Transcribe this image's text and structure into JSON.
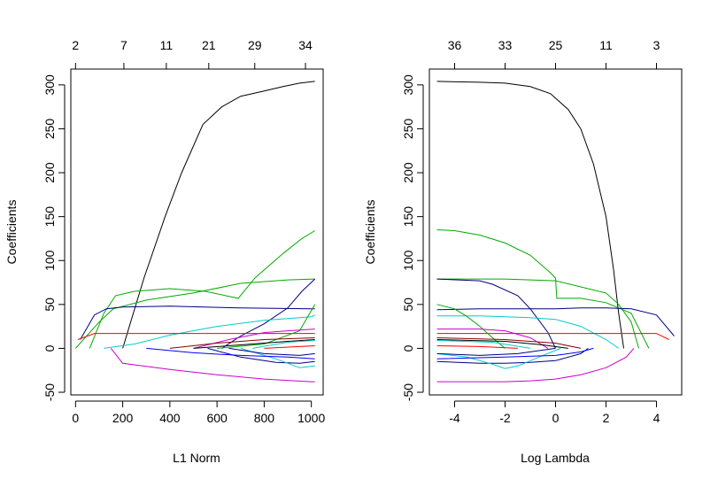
{
  "chart_data": [
    {
      "type": "line",
      "xlabel": "L1 Norm",
      "ylabel": "Coefficients",
      "xlim": [
        -20,
        1050
      ],
      "ylim": [
        -53,
        318
      ],
      "x_ticks": [
        0,
        200,
        400,
        600,
        800,
        1000
      ],
      "x_tick_labels": [
        "0",
        "200",
        "400",
        "600",
        "800",
        "1000"
      ],
      "y_ticks": [
        -50,
        0,
        50,
        100,
        150,
        200,
        250,
        300
      ],
      "y_tick_labels": [
        "-50",
        "0",
        "50",
        "100",
        "150",
        "200",
        "250",
        "300"
      ],
      "top_ticks": [
        0,
        205,
        385,
        565,
        760,
        975
      ],
      "top_tick_labels": [
        "2",
        "7",
        "11",
        "21",
        "29",
        "34"
      ],
      "series": [
        {
          "color": "#000000",
          "x": [
            200,
            290,
            380,
            450,
            540,
            620,
            700,
            800,
            880,
            950,
            1015
          ],
          "y": [
            0,
            80,
            150,
            200,
            255,
            275,
            287,
            293,
            298,
            302,
            304
          ]
        },
        {
          "color": "#00aa00",
          "x": [
            60,
            120,
            170,
            250,
            400,
            550,
            690,
            760,
            880,
            960,
            1015
          ],
          "y": [
            0,
            40,
            60,
            65,
            68,
            65,
            57,
            80,
            108,
            125,
            134
          ]
        },
        {
          "color": "#00aa00",
          "x": [
            0,
            100,
            160,
            300,
            500,
            700,
            900,
            1015
          ],
          "y": [
            0,
            30,
            45,
            55,
            63,
            74,
            78,
            79
          ]
        },
        {
          "color": "#000080",
          "x": [
            20,
            80,
            130,
            200,
            400,
            700,
            1000,
            1015
          ],
          "y": [
            10,
            38,
            45,
            47,
            48,
            46,
            45,
            45
          ]
        },
        {
          "color": "#000080",
          "x": [
            620,
            700,
            800,
            900,
            960,
            1015
          ],
          "y": [
            0,
            14,
            28,
            46,
            65,
            79
          ]
        },
        {
          "color": "#00cccc",
          "x": [
            120,
            250,
            400,
            600,
            800,
            1000,
            1015
          ],
          "y": [
            0,
            5,
            15,
            25,
            32,
            36,
            38
          ]
        },
        {
          "color": "#ff0000",
          "x": [
            10,
            80,
            1015
          ],
          "y": [
            10,
            17,
            17
          ]
        },
        {
          "color": "#cc00cc",
          "x": [
            150,
            200,
            400,
            600,
            800,
            1000,
            1015
          ],
          "y": [
            0,
            -17,
            -24,
            -30,
            -35,
            -38,
            -38
          ]
        },
        {
          "color": "#00aa00",
          "x": [
            600,
            800,
            950,
            1015
          ],
          "y": [
            0,
            5,
            20,
            50
          ]
        },
        {
          "color": "#cc00cc",
          "x": [
            500,
            650,
            800,
            900,
            1015
          ],
          "y": [
            0,
            10,
            18,
            20,
            22
          ]
        },
        {
          "color": "#000080",
          "x": [
            560,
            700,
            850,
            950,
            1015
          ],
          "y": [
            0,
            -10,
            -16,
            -17,
            -15
          ]
        },
        {
          "color": "#00cccc",
          "x": [
            700,
            850,
            950,
            1015
          ],
          "y": [
            0,
            -12,
            -22,
            -20
          ]
        },
        {
          "color": "#0000ff",
          "x": [
            300,
            500,
            700,
            900,
            1015
          ],
          "y": [
            0,
            -5,
            -8,
            -10,
            -12
          ]
        },
        {
          "color": "#8b0000",
          "x": [
            400,
            600,
            800,
            1015
          ],
          "y": [
            0,
            6,
            10,
            12
          ]
        },
        {
          "color": "#000000",
          "x": [
            500,
            700,
            900,
            1015
          ],
          "y": [
            0,
            4,
            8,
            10
          ]
        },
        {
          "color": "#000080",
          "x": [
            650,
            800,
            950,
            1015
          ],
          "y": [
            0,
            -6,
            -8,
            -6
          ]
        },
        {
          "color": "#00cccc",
          "x": [
            750,
            900,
            1015
          ],
          "y": [
            0,
            7,
            9
          ]
        },
        {
          "color": "#ff0000",
          "x": [
            800,
            950,
            1015
          ],
          "y": [
            0,
            2,
            3
          ]
        }
      ]
    },
    {
      "type": "line",
      "xlabel": "Log Lambda",
      "ylabel": "Coefficients",
      "xlim": [
        -5.0,
        5.0
      ],
      "ylim": [
        -53,
        318
      ],
      "x_ticks": [
        -4,
        -2,
        0,
        2,
        4
      ],
      "x_tick_labels": [
        "-4",
        "-2",
        "0",
        "2",
        "4"
      ],
      "y_ticks": [
        -50,
        0,
        50,
        100,
        150,
        200,
        250,
        300
      ],
      "y_tick_labels": [
        "-50",
        "0",
        "50",
        "100",
        "150",
        "200",
        "250",
        "300"
      ],
      "top_ticks": [
        -4.0,
        -2.0,
        0.0,
        2.0,
        4.0
      ],
      "top_tick_labels": [
        "36",
        "33",
        "25",
        "11",
        "3"
      ],
      "series": [
        {
          "color": "#000000",
          "x": [
            -4.7,
            -3.0,
            -2.0,
            -1.0,
            -0.2,
            0.5,
            1.0,
            1.5,
            2.0,
            2.3,
            2.5,
            2.7
          ],
          "y": [
            304,
            303,
            302,
            298,
            290,
            272,
            250,
            210,
            150,
            90,
            40,
            0
          ]
        },
        {
          "color": "#00aa00",
          "x": [
            -4.7,
            -4.0,
            -3.0,
            -2.0,
            -1.0,
            -0.2,
            0.0,
            0.05,
            1.0,
            2.0,
            3.0,
            3.7
          ],
          "y": [
            135,
            134,
            129,
            120,
            106,
            86,
            80,
            57,
            57,
            52,
            40,
            0
          ]
        },
        {
          "color": "#00aa00",
          "x": [
            -4.7,
            -2.0,
            0.0,
            1.0,
            2.0,
            2.5,
            3.0,
            3.3
          ],
          "y": [
            79,
            79,
            77,
            70,
            63,
            50,
            30,
            0
          ]
        },
        {
          "color": "#000080",
          "x": [
            -4.7,
            -3.0,
            -2.0,
            -1.0,
            0.0,
            1.0,
            2.0,
            3.0,
            4.0,
            4.7
          ],
          "y": [
            44,
            45,
            45,
            45,
            45,
            46,
            46,
            45,
            38,
            14
          ]
        },
        {
          "color": "#000080",
          "x": [
            -4.7,
            -3.0,
            -2.5,
            -1.5,
            -1.0,
            -0.3,
            0.0
          ],
          "y": [
            79,
            77,
            73,
            60,
            45,
            18,
            0
          ]
        },
        {
          "color": "#00cccc",
          "x": [
            -4.7,
            -3.0,
            -2.0,
            -1.0,
            0.0,
            1.0,
            2.0,
            2.5
          ],
          "y": [
            37,
            37,
            36,
            35,
            33,
            25,
            10,
            0
          ]
        },
        {
          "color": "#ff0000",
          "x": [
            -4.7,
            0.0,
            2.0,
            3.0,
            4.0,
            4.5
          ],
          "y": [
            17,
            17,
            17,
            17,
            17,
            10
          ]
        },
        {
          "color": "#cc00cc",
          "x": [
            -4.7,
            -3.0,
            -2.0,
            -1.0,
            0.0,
            1.0,
            2.0,
            2.8,
            3.1
          ],
          "y": [
            -38,
            -38,
            -38,
            -37,
            -35,
            -30,
            -22,
            -10,
            0
          ]
        },
        {
          "color": "#00aa00",
          "x": [
            -4.7,
            -4.0,
            -3.5,
            -3.0,
            -2.5,
            -2.0
          ],
          "y": [
            50,
            45,
            36,
            25,
            12,
            0
          ]
        },
        {
          "color": "#cc00cc",
          "x": [
            -4.7,
            -3.0,
            -2.0,
            -1.0,
            -0.3
          ],
          "y": [
            22,
            22,
            20,
            12,
            0
          ]
        },
        {
          "color": "#000080",
          "x": [
            -4.7,
            -3.0,
            -2.0,
            -1.0,
            0.0,
            1.0,
            1.3
          ],
          "y": [
            -15,
            -17,
            -17,
            -16,
            -14,
            -6,
            0
          ]
        },
        {
          "color": "#00cccc",
          "x": [
            -4.7,
            -3.5,
            -2.5,
            -2.0,
            -1.5,
            -0.5,
            0.2
          ],
          "y": [
            -6,
            -10,
            -18,
            -23,
            -20,
            -8,
            0
          ]
        },
        {
          "color": "#0000ff",
          "x": [
            -4.7,
            -2.0,
            0.0,
            1.0,
            1.5
          ],
          "y": [
            -12,
            -10,
            -8,
            -4,
            0
          ]
        },
        {
          "color": "#8b0000",
          "x": [
            -4.7,
            -2.0,
            0.0,
            1.0
          ],
          "y": [
            12,
            10,
            6,
            0
          ]
        },
        {
          "color": "#000000",
          "x": [
            -4.7,
            -2.0,
            -0.5,
            0.5
          ],
          "y": [
            10,
            8,
            4,
            0
          ]
        },
        {
          "color": "#000080",
          "x": [
            -4.7,
            -3.0,
            -1.5,
            0.0
          ],
          "y": [
            -6,
            -8,
            -6,
            0
          ]
        },
        {
          "color": "#00cccc",
          "x": [
            -4.7,
            -2.5,
            -1.0
          ],
          "y": [
            9,
            7,
            0
          ]
        },
        {
          "color": "#ff0000",
          "x": [
            -4.7,
            -3.0,
            -1.5
          ],
          "y": [
            3,
            2,
            0
          ]
        }
      ]
    }
  ]
}
